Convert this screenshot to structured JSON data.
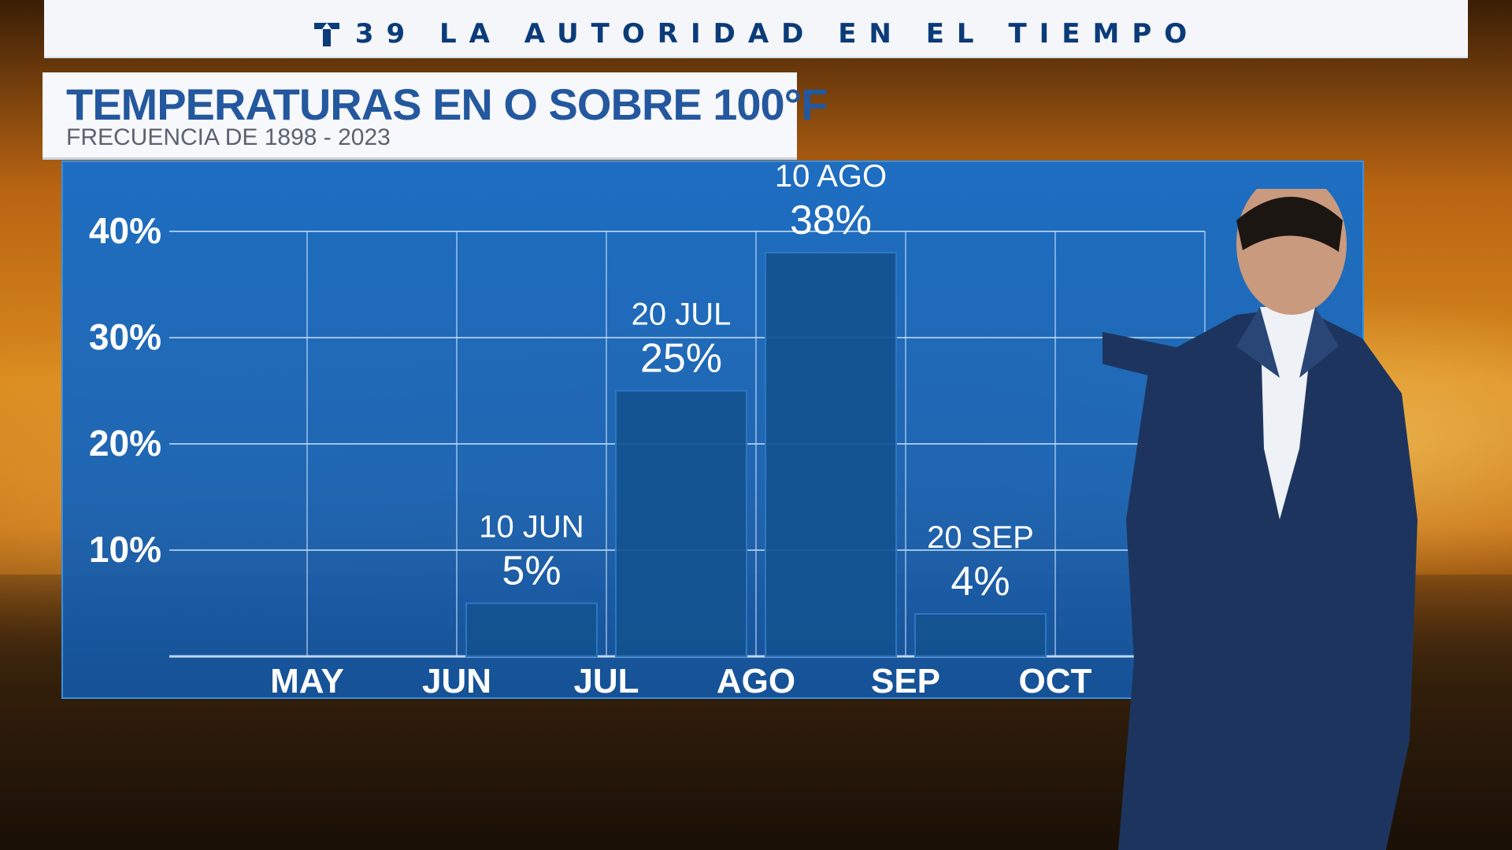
{
  "banner": {
    "logo_icon": "telemundo-t-icon",
    "text": "39 LA AUTORIDAD EN EL TIEMPO"
  },
  "header": {
    "title": "TEMPERATURAS EN O SOBRE 100°F",
    "subtitle": "FRECUENCIA DE 1898 - 2023"
  },
  "colors": {
    "panel": "#1a6ec8",
    "bar": "#14528f",
    "title": "#24589e",
    "banner_text": "#0b3b78"
  },
  "chart_data": {
    "type": "bar",
    "title": "TEMPERATURAS EN O SOBRE 100°F",
    "subtitle": "FRECUENCIA DE 1898 - 2023",
    "x_tick_labels": [
      "MAY",
      "JUN",
      "JUL",
      "AGO",
      "SEP",
      "OCT"
    ],
    "y_tick_labels": [
      "10%",
      "20%",
      "30%",
      "40%"
    ],
    "y_ticks": [
      10,
      20,
      30,
      40
    ],
    "ylim": [
      0,
      45
    ],
    "grid": true,
    "bars": [
      {
        "date_label": "10 JUN",
        "value_label": "5%",
        "value": 5,
        "period": "JUN-JUL"
      },
      {
        "date_label": "20 JUL",
        "value_label": "25%",
        "value": 25,
        "period": "JUL-AGO"
      },
      {
        "date_label": "10 AGO",
        "value_label": "38%",
        "value": 38,
        "period": "AGO-SEP"
      },
      {
        "date_label": "20 SEP",
        "value_label": "4%",
        "value": 4,
        "period": "SEP-OCT"
      }
    ]
  }
}
